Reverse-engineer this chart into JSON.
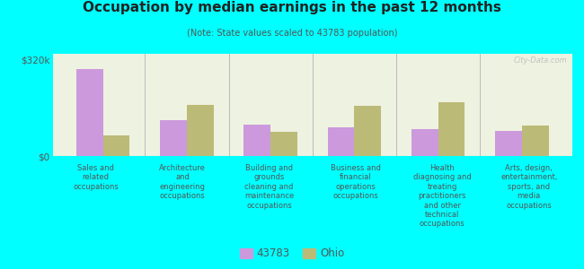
{
  "title": "Occupation by median earnings in the past 12 months",
  "subtitle": "(Note: State values scaled to 43783 population)",
  "background_color": "#00FFFF",
  "plot_bg_color": "#eef2e0",
  "categories": [
    "Sales and\nrelated\noccupations",
    "Architecture\nand\nengineering\noccupations",
    "Building and\ngrounds\ncleaning and\nmaintenance\noccupations",
    "Business and\nfinancial\noperations\noccupations",
    "Health\ndiagnosing and\ntreating\npractitioners\nand other\ntechnical\noccupations",
    "Arts, design,\nentertainment,\nsports, and\nmedia\noccupations"
  ],
  "values_43783": [
    288000,
    120000,
    105000,
    95000,
    90000,
    85000
  ],
  "values_ohio": [
    68000,
    170000,
    80000,
    168000,
    178000,
    100000
  ],
  "color_43783": "#cc99dd",
  "color_ohio": "#bbbb77",
  "ylim": [
    0,
    340000
  ],
  "yticks": [
    0,
    320000
  ],
  "ytick_labels": [
    "$0",
    "$320k"
  ],
  "legend_43783": "43783",
  "legend_ohio": "Ohio",
  "watermark": "City-Data.com"
}
